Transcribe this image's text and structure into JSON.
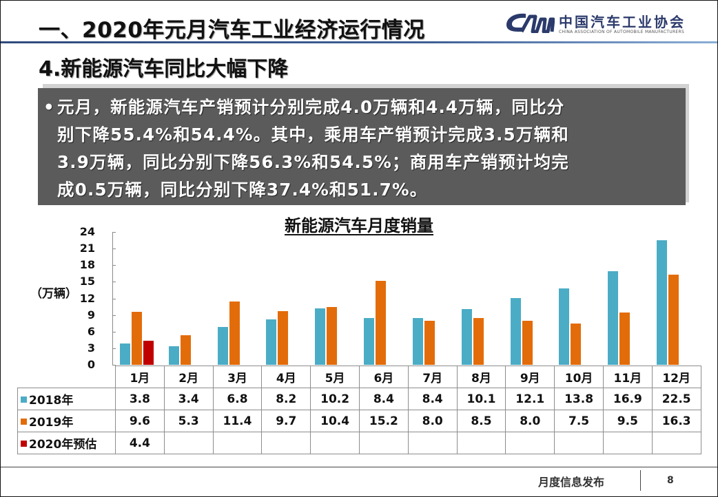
{
  "header": {
    "main_title": "一、2020年元月汽车工业经济运行情况",
    "logo": {
      "mark": "CAM",
      "name_cn": "中国汽车工业协会",
      "name_en": "CHINA ASSOCIATION OF AUTOMOBILE MANUFACTURERS",
      "color": "#2b3a6b"
    }
  },
  "subtitle": "4.新能源汽车同比大幅下降",
  "summary": {
    "bullet": "•",
    "lines": [
      "元月，新能源汽车产销预计分别完成4.0万辆和4.4万辆，同比分",
      "别下降55.4%和54.4%。其中，乘用车产销预计完成3.5万辆和",
      "3.9万辆，同比分别下降56.3%和54.5%；商用车产销预计均完",
      "成0.5万辆，同比分别下降37.4%和51.7%。"
    ]
  },
  "chart_data": {
    "type": "bar",
    "title": "新能源汽车月度销量",
    "xlabel": "",
    "ylabel": "（万辆）",
    "ylim": [
      0,
      24
    ],
    "yticks": [
      0,
      3,
      6,
      9,
      12,
      15,
      18,
      21,
      24
    ],
    "grid": false,
    "legend_position": "table-left",
    "categories": [
      "1月",
      "2月",
      "3月",
      "4月",
      "5月",
      "6月",
      "7月",
      "8月",
      "9月",
      "10月",
      "11月",
      "12月"
    ],
    "series": [
      {
        "name": "2018年",
        "color": "#4bacc6",
        "values": [
          3.8,
          3.4,
          6.8,
          8.2,
          10.2,
          8.4,
          8.4,
          10.1,
          12.1,
          13.8,
          16.9,
          22.5
        ]
      },
      {
        "name": "2019年",
        "color": "#e36c0a",
        "values": [
          9.6,
          5.3,
          11.4,
          9.7,
          10.4,
          15.2,
          8.0,
          8.5,
          8.0,
          7.5,
          9.5,
          16.3
        ]
      },
      {
        "name": "2020年预估",
        "color": "#c00000",
        "values": [
          4.4,
          null,
          null,
          null,
          null,
          null,
          null,
          null,
          null,
          null,
          null,
          null
        ]
      }
    ],
    "table_display": {
      "2018年": [
        "3.8",
        "3.4",
        "6.8",
        "8.2",
        "10.2",
        "8.4",
        "8.4",
        "10.1",
        "12.1",
        "13.8",
        "16.9",
        "22.5"
      ],
      "2019年": [
        "9.6",
        "5.3",
        "11.4",
        "9.7",
        "10.4",
        "15.2",
        "8.0",
        "8.5",
        "8.0",
        "7.5",
        "9.5",
        "16.3"
      ],
      "2020年预估": [
        "4.4",
        "",
        "",
        "",
        "",
        "",
        "",
        "",
        "",
        "",
        "",
        ""
      ]
    }
  },
  "footer": {
    "label": "月度信息发布",
    "page": "8"
  }
}
